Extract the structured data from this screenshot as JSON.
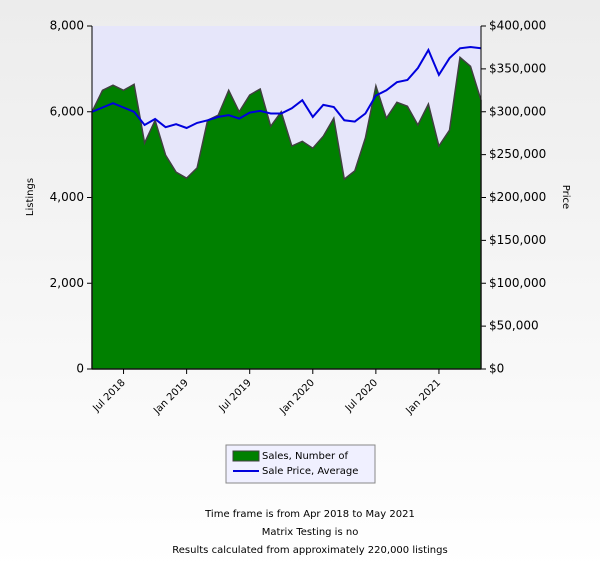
{
  "chart_data": {
    "type": "area-line",
    "categories": [
      "Apr 2018",
      null,
      null,
      "Jul 2018",
      null,
      null,
      null,
      null,
      null,
      "Jan 2019",
      null,
      null,
      null,
      null,
      null,
      "Jul 2019",
      null,
      null,
      null,
      null,
      null,
      "Jan 2020",
      null,
      null,
      null,
      null,
      null,
      "Jul 2020",
      null,
      null,
      null,
      null,
      null,
      "Jan 2021",
      null,
      null,
      null,
      "May 2021"
    ],
    "series": [
      {
        "name": "Sales, Number of",
        "color": "#008000",
        "axis": "y",
        "values": [
          6000,
          6500,
          6620,
          6500,
          6640,
          5270,
          5800,
          4990,
          4590,
          4450,
          4690,
          5800,
          5920,
          6500,
          6000,
          6390,
          6530,
          5660,
          6000,
          5200,
          5310,
          5150,
          5430,
          5850,
          4430,
          4620,
          5390,
          6600,
          5850,
          6220,
          6130,
          5690,
          6180,
          5200,
          5570,
          7270,
          7060,
          6270
        ]
      },
      {
        "name": "Sale Price, Average",
        "color": "#0000dd",
        "axis": "y2",
        "values": [
          300000,
          305000,
          310000,
          305000,
          300000,
          284500,
          291500,
          282000,
          285500,
          281000,
          287000,
          290000,
          294000,
          296000,
          292000,
          299000,
          301000,
          298000,
          298000,
          304000,
          313500,
          294000,
          308000,
          305500,
          290000,
          288500,
          298000,
          319000,
          325000,
          334500,
          337000,
          351000,
          372000,
          343000,
          362500,
          374000,
          375500,
          374000
        ]
      }
    ],
    "y_label": "Listings",
    "y2_label": "Price",
    "ylim": [
      0,
      8000
    ],
    "yticks": [
      0,
      {
        "value": 2000,
        "label": "2,000"
      },
      {
        "value": 4000,
        "label": "4,000"
      },
      {
        "value": 6000,
        "label": "6,000"
      },
      {
        "value": 8000,
        "label": "8,000"
      }
    ],
    "y2lim": [
      0,
      400000
    ],
    "y2ticks": [
      {
        "value": 0,
        "label": "$0"
      },
      {
        "value": 50000,
        "label": "$50,000"
      },
      {
        "value": 100000,
        "label": "$100,000"
      },
      {
        "value": 150000,
        "label": "$150,000"
      },
      {
        "value": 200000,
        "label": "$200,000"
      },
      {
        "value": 250000,
        "label": "$250,000"
      },
      {
        "value": 300000,
        "label": "$300,000"
      },
      {
        "value": 350000,
        "label": "$350,000"
      },
      {
        "value": 400000,
        "label": "$400,000"
      }
    ],
    "footer": [
      "Time frame is from Apr 2018 to May 2021",
      "Matrix Testing is no",
      "Results calculated from approximately 220,000 listings"
    ]
  }
}
